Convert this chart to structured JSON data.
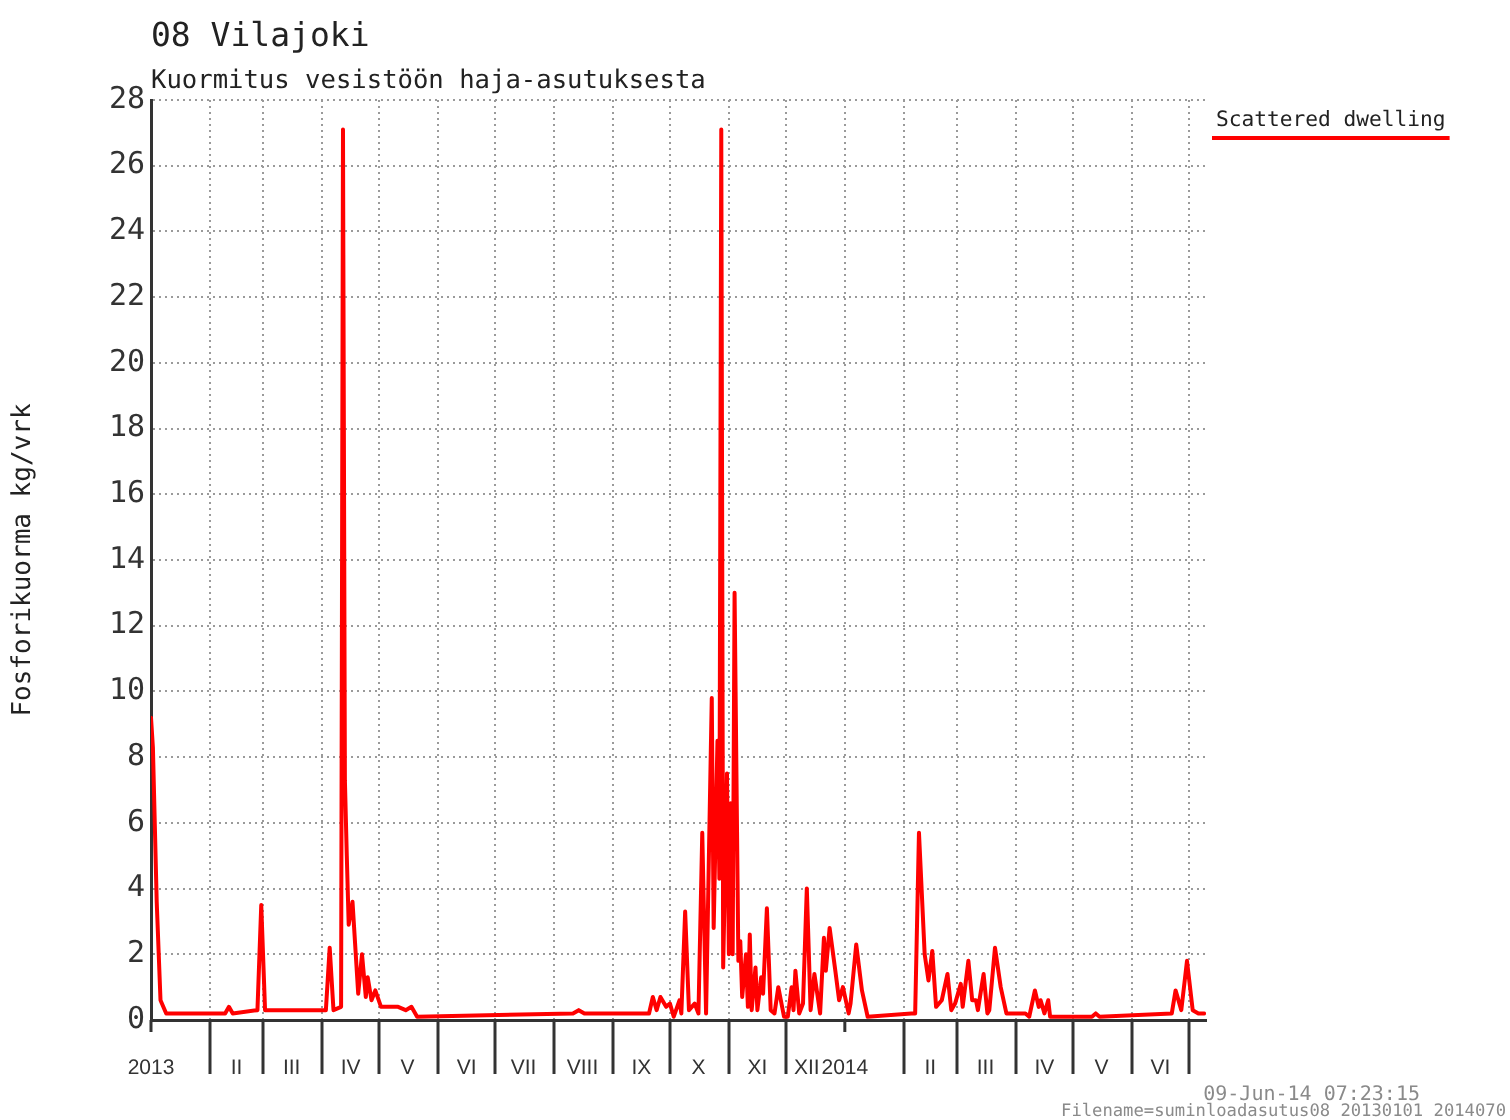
{
  "chart_data": {
    "type": "line",
    "title": "08 Vilajoki",
    "subtitle": "Kuormitus vesistöön haja-asutuksesta",
    "ylabel": "Fosforikuorma kg/vrk",
    "annotations": [
      "09-Jun-14 07:23:15",
      "Filename=suminloadasutus08 20130101 2014070"
    ],
    "x": [
      "2013-01-01",
      "2013-01-02",
      "2013-01-04",
      "2013-01-06",
      "2013-01-09",
      "2013-01-31",
      "2013-02-09",
      "2013-02-11",
      "2013-02-13",
      "2013-02-26",
      "2013-02-28",
      "2013-03-02",
      "2013-04-03",
      "2013-04-05",
      "2013-04-07",
      "2013-04-11",
      "2013-04-12",
      "2013-04-13",
      "2013-04-14",
      "2013-04-15",
      "2013-04-17",
      "2013-04-20",
      "2013-04-22",
      "2013-04-24",
      "2013-04-25",
      "2013-04-27",
      "2013-04-29",
      "2013-05-02",
      "2013-05-11",
      "2013-05-15",
      "2013-05-18",
      "2013-05-21",
      "2013-08-11",
      "2013-08-14",
      "2013-08-17",
      "2013-09-20",
      "2013-09-22",
      "2013-09-24",
      "2013-09-26",
      "2013-09-29",
      "2013-10-01",
      "2013-10-03",
      "2013-10-06",
      "2013-10-07",
      "2013-10-09",
      "2013-10-11",
      "2013-10-14",
      "2013-10-16",
      "2013-10-18",
      "2013-10-20",
      "2013-10-23",
      "2013-10-24",
      "2013-10-26",
      "2013-10-27",
      "2013-10-28",
      "2013-10-29",
      "2013-10-31",
      "2013-11-01",
      "2013-11-02",
      "2013-11-03",
      "2013-11-04",
      "2013-11-06",
      "2013-11-07",
      "2013-11-08",
      "2013-11-10",
      "2013-11-11",
      "2013-11-12",
      "2013-11-13",
      "2013-11-15",
      "2013-11-16",
      "2013-11-18",
      "2013-11-19",
      "2013-11-21",
      "2013-11-23",
      "2013-11-25",
      "2013-11-27",
      "2013-11-30",
      "2013-12-02",
      "2013-12-04",
      "2013-12-05",
      "2013-12-06",
      "2013-12-08",
      "2013-12-10",
      "2013-12-12",
      "2013-12-14",
      "2013-12-16",
      "2013-12-19",
      "2013-12-21",
      "2013-12-22",
      "2013-12-24",
      "2013-12-27",
      "2013-12-29",
      "2013-12-31",
      "2014-01-03",
      "2014-01-04",
      "2014-01-07",
      "2014-01-10",
      "2014-01-13",
      "2014-02-05",
      "2014-02-07",
      "2014-02-09",
      "2014-02-12",
      "2014-02-14",
      "2014-02-16",
      "2014-02-18",
      "2014-02-21",
      "2014-02-24",
      "2014-02-26",
      "2014-02-28",
      "2014-03-03",
      "2014-03-04",
      "2014-03-07",
      "2014-03-09",
      "2014-03-11",
      "2014-03-12",
      "2014-03-15",
      "2014-03-17",
      "2014-03-18",
      "2014-03-21",
      "2014-03-24",
      "2014-03-27",
      "2014-04-06",
      "2014-04-08",
      "2014-04-11",
      "2014-04-13",
      "2014-04-14",
      "2014-04-16",
      "2014-04-18",
      "2014-04-19",
      "2014-05-11",
      "2014-05-13",
      "2014-05-15",
      "2014-06-22",
      "2014-06-24",
      "2014-06-27",
      "2014-06-30",
      "2014-07-03",
      "2014-07-06",
      "2014-07-09"
    ],
    "series": [
      {
        "name": "Scattered dwelling",
        "color": "#ff0000",
        "values": [
          9.2,
          8.3,
          3.6,
          0.6,
          0.2,
          0.2,
          0.2,
          0.4,
          0.2,
          0.3,
          3.5,
          0.3,
          0.3,
          2.2,
          0.3,
          0.4,
          27.1,
          7.3,
          5.0,
          2.9,
          3.6,
          0.8,
          2.0,
          0.7,
          1.3,
          0.6,
          0.9,
          0.4,
          0.4,
          0.3,
          0.4,
          0.1,
          0.2,
          0.3,
          0.2,
          0.2,
          0.7,
          0.3,
          0.7,
          0.4,
          0.5,
          0.1,
          0.6,
          0.2,
          3.3,
          0.3,
          0.5,
          0.2,
          5.7,
          0.2,
          9.8,
          2.8,
          8.5,
          4.3,
          27.1,
          1.6,
          7.5,
          2.0,
          6.6,
          2.0,
          13.0,
          1.8,
          2.4,
          0.7,
          2.0,
          0.4,
          2.6,
          0.3,
          1.6,
          0.3,
          1.3,
          0.8,
          3.4,
          0.3,
          0.2,
          1.0,
          0.1,
          0.1,
          1.0,
          0.3,
          1.5,
          0.2,
          0.5,
          4.0,
          0.3,
          1.4,
          0.2,
          2.5,
          1.5,
          2.8,
          1.5,
          0.6,
          1.0,
          0.2,
          0.5,
          2.3,
          0.9,
          0.1,
          0.2,
          0.2,
          5.7,
          2.0,
          1.2,
          2.1,
          0.4,
          0.6,
          1.4,
          0.3,
          0.5,
          1.1,
          0.4,
          1.8,
          0.6,
          0.6,
          0.3,
          1.4,
          0.2,
          0.3,
          2.2,
          1.0,
          0.2,
          0.2,
          0.1,
          0.9,
          0.4,
          0.6,
          0.2,
          0.6,
          0.1,
          0.1,
          0.2,
          0.1,
          0.2,
          0.9,
          0.3,
          1.8,
          0.3,
          0.2,
          0.2
        ]
      }
    ],
    "xlim": [
      "2013-01-01",
      "2014-07-10"
    ],
    "xticks": [
      {
        "value": "2013",
        "label": "2013"
      },
      {
        "value": "2013-02-01",
        "label": null
      },
      {
        "value": "2013-02-15",
        "label": "II"
      },
      {
        "value": "2013-03-01",
        "label": null
      },
      {
        "value": "2013-03-16",
        "label": "III"
      },
      {
        "value": "2013-04-01",
        "label": null
      },
      {
        "value": "2013-04-16",
        "label": "IV"
      },
      {
        "value": "2013-05-01",
        "label": null
      },
      {
        "value": "2013-05-16",
        "label": "V"
      },
      {
        "value": "2013-06-01",
        "label": null
      },
      {
        "value": "2013-06-16",
        "label": "VI"
      },
      {
        "value": "2013-07-01",
        "label": null
      },
      {
        "value": "2013-07-16",
        "label": "VII"
      },
      {
        "value": "2013-08-01",
        "label": null
      },
      {
        "value": "2013-08-16",
        "label": "VIII"
      },
      {
        "value": "2013-09-01",
        "label": null
      },
      {
        "value": "2013-09-16",
        "label": "IX"
      },
      {
        "value": "2013-10-01",
        "label": null
      },
      {
        "value": "2013-10-16",
        "label": "X"
      },
      {
        "value": "2013-11-01",
        "label": null
      },
      {
        "value": "2013-11-16",
        "label": "XI"
      },
      {
        "value": "2013-12-01",
        "label": null
      },
      {
        "value": "2013-12-12",
        "label": "XII"
      },
      {
        "value": "2014",
        "label": "2014"
      },
      {
        "value": "2014-02-01",
        "label": null
      },
      {
        "value": "2014-02-15",
        "label": "II"
      },
      {
        "value": "2014-03-01",
        "label": null
      },
      {
        "value": "2014-03-16",
        "label": "III"
      },
      {
        "value": "2014-04-01",
        "label": null
      },
      {
        "value": "2014-04-16",
        "label": "IV"
      },
      {
        "value": "2014-05-01",
        "label": null
      },
      {
        "value": "2014-05-16",
        "label": "V"
      },
      {
        "value": "2014-06-01",
        "label": null
      },
      {
        "value": "2014-06-16",
        "label": "VI"
      },
      {
        "value": "2014-07-01",
        "label": null
      }
    ],
    "ylim": [
      0,
      28
    ],
    "yticks": [
      0,
      2,
      4,
      6,
      8,
      10,
      12,
      14,
      16,
      18,
      20,
      22,
      24,
      26,
      28
    ],
    "grid": true,
    "legend": "top right"
  }
}
